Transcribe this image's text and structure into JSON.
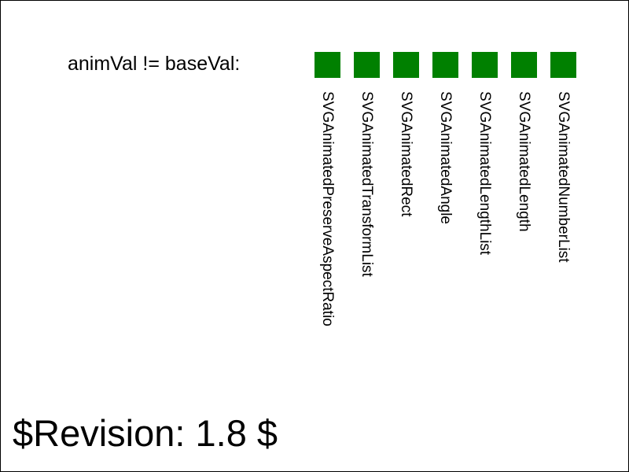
{
  "row_label": "animVal != baseVal:",
  "swatch_color": "#008000",
  "interfaces": [
    "SVGAnimatedPreserveAspectRatio",
    "SVGAnimatedTransformList",
    "SVGAnimatedRect",
    "SVGAnimatedAngle",
    "SVGAnimatedLengthList",
    "SVGAnimatedLength",
    "SVGAnimatedNumberList"
  ],
  "revision": "$Revision: 1.8 $"
}
